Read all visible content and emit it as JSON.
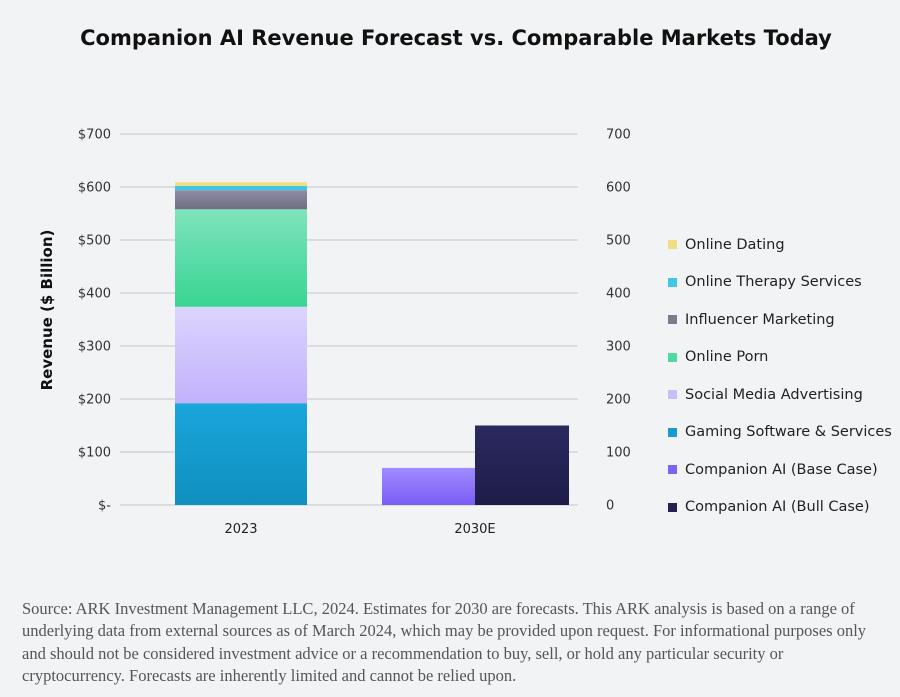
{
  "title": "Companion AI Revenue Forecast vs. Comparable Markets Today",
  "chart_data": {
    "type": "bar",
    "stacked": true,
    "title": "Companion AI Revenue Forecast vs. Comparable Markets Today",
    "xlabel": "",
    "ylabel": "Revenue ($ Billion)",
    "ylim": [
      0,
      700
    ],
    "yticks_left": [
      "$-",
      "$100",
      "$200",
      "$300",
      "$400",
      "$500",
      "$600",
      "$700"
    ],
    "yticks_right": [
      "0",
      "100",
      "200",
      "300",
      "400",
      "500",
      "600",
      "700"
    ],
    "ytick_values": [
      0,
      100,
      200,
      300,
      400,
      500,
      600,
      700
    ],
    "grid": true,
    "legend_position": "right",
    "categories": [
      "2023",
      "2030E"
    ],
    "series": [
      {
        "name": "Gaming Software & Services",
        "color": "#1aa6dc",
        "color_dark": "#0f8fbf",
        "category": "2023",
        "value": 192
      },
      {
        "name": "Social Media Advertising",
        "color": "#dcd4ff",
        "color_dark": "#c2b2fb",
        "category": "2023",
        "value": 182
      },
      {
        "name": "Online Porn",
        "color": "#7fe3bb",
        "color_dark": "#38d593",
        "category": "2023",
        "value": 184
      },
      {
        "name": "Influencer Marketing",
        "color": "#8f8ca6",
        "color_dark": "#6f6d80",
        "category": "2023",
        "value": 36
      },
      {
        "name": "Online Therapy Services",
        "color": "#3ec8e4",
        "color_dark": "#3ec8e4",
        "category": "2023",
        "value": 8
      },
      {
        "name": "Online Dating",
        "color": "#f1dd86",
        "color_dark": "#f1dd86",
        "category": "2023",
        "value": 7
      },
      {
        "name": "Companion AI (Base Case)",
        "color": "#a08bff",
        "color_dark": "#7a5cf5",
        "category": "2030E",
        "value": 70
      },
      {
        "name": "Companion AI (Bull Case)",
        "color": "#2b2a60",
        "color_dark": "#1e1c47",
        "category": "2030E",
        "value": 150
      }
    ],
    "legend": [
      {
        "name": "Online Dating",
        "color": "#f1dd86"
      },
      {
        "name": "Online Therapy Services",
        "color": "#3ec8e4"
      },
      {
        "name": "Influencer Marketing",
        "color": "#7d7b8e"
      },
      {
        "name": "Online Porn",
        "color": "#4fd9a0"
      },
      {
        "name": "Social Media Advertising",
        "color": "#c9bdfc"
      },
      {
        "name": "Gaming Software & Services",
        "color": "#1a9ad0"
      },
      {
        "name": "Companion AI (Base Case)",
        "color": "#7e62f6"
      },
      {
        "name": "Companion AI (Bull Case)",
        "color": "#23214f"
      }
    ]
  },
  "source_text": "Source: ARK Investment Management LLC, 2024. Estimates for 2030 are forecasts. This ARK analysis is based on a range of underlying data from external sources as of March 2024, which may be provided upon request. For informational purposes only and should not be considered investment advice or a recommendation to buy, sell, or hold any particular security or cryptocurrency. Forecasts are inherently limited and cannot be relied upon."
}
